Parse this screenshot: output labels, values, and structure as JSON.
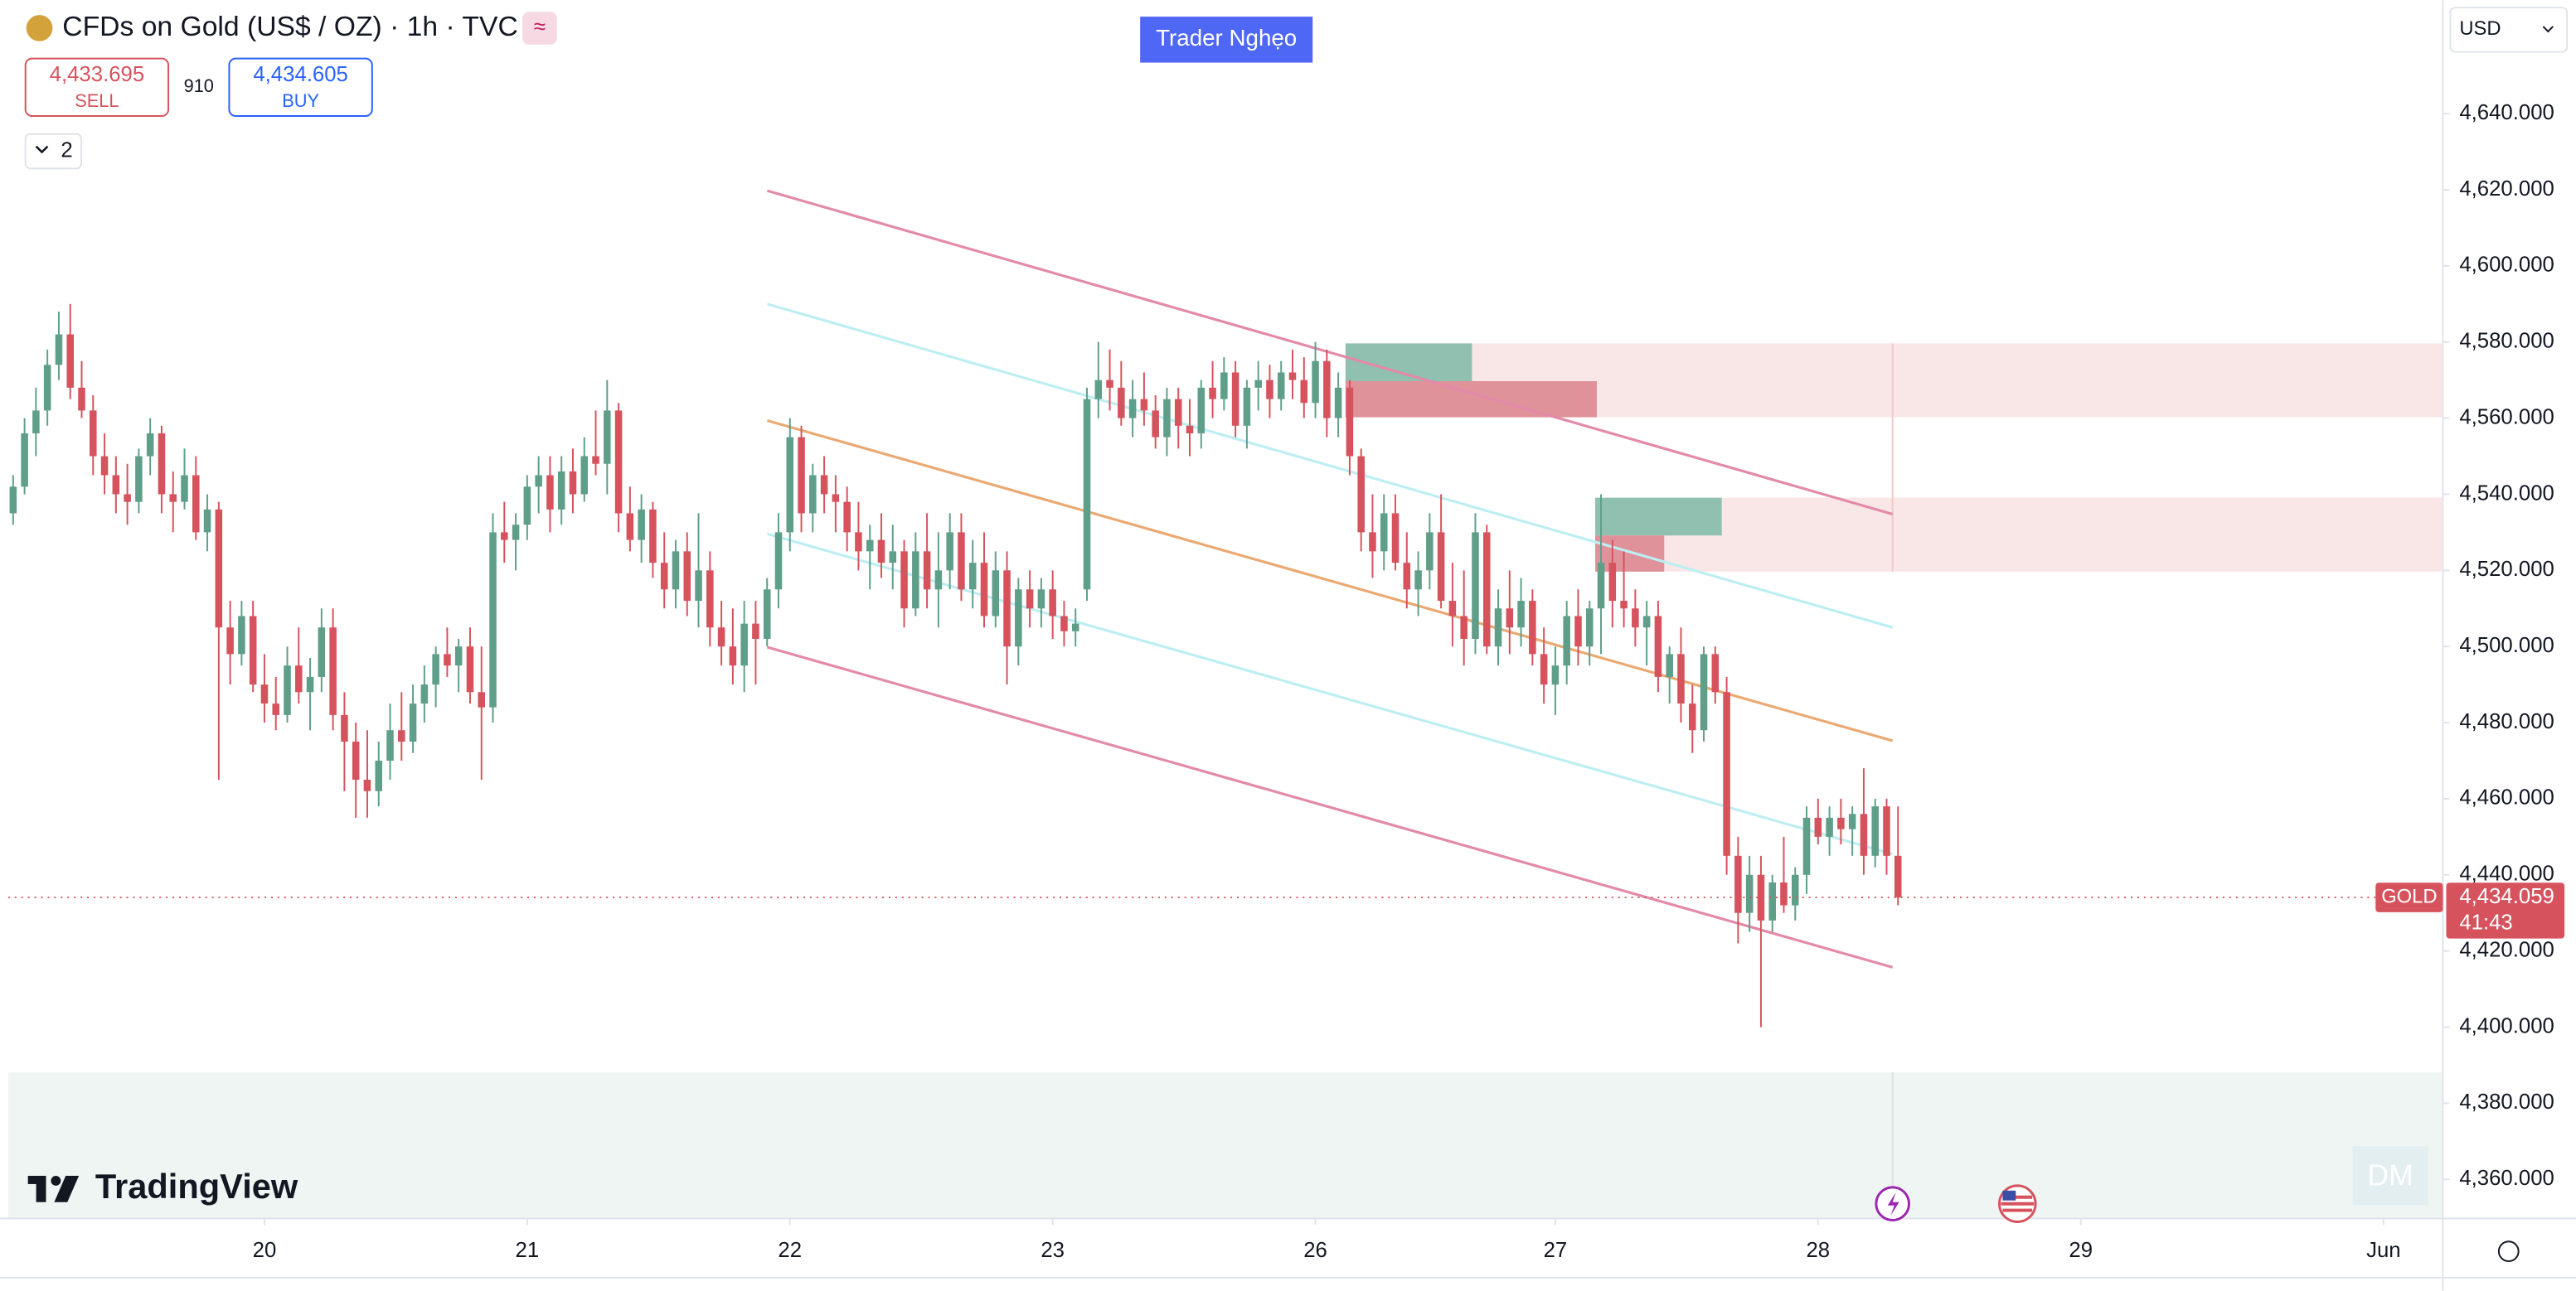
{
  "chart_data": {
    "type": "candlestick",
    "title": "CFDs on Gold (US$ / OZ) · 1h · TVC",
    "symbol": "GOLD",
    "currency": "USD",
    "last_price": {
      "value": 4434.059,
      "label": "4,434.059"
    },
    "countdown": "41:43",
    "up_color": "#5f9f8a",
    "down_color": "#d6535e",
    "grid": false,
    "ylim": [
      4349.7,
      4669.8
    ],
    "yticks": [
      {
        "value": 4360,
        "label": "4,360.000"
      },
      {
        "value": 4380,
        "label": "4,380.000"
      },
      {
        "value": 4400,
        "label": "4,400.000"
      },
      {
        "value": 4420,
        "label": "4,420.000"
      },
      {
        "value": 4440,
        "label": "4,440.000"
      },
      {
        "value": 4460,
        "label": "4,460.000"
      },
      {
        "value": 4480,
        "label": "4,480.000"
      },
      {
        "value": 4500,
        "label": "4,500.000"
      },
      {
        "value": 4520,
        "label": "4,520.000"
      },
      {
        "value": 4540,
        "label": "4,540.000"
      },
      {
        "value": 4560,
        "label": "4,560.000"
      },
      {
        "value": 4580,
        "label": "4,580.000"
      },
      {
        "value": 4600,
        "label": "4,600.000"
      },
      {
        "value": 4620,
        "label": "4,620.000"
      },
      {
        "value": 4640,
        "label": "4,640.000"
      }
    ],
    "xlim": [
      -0.43,
      212.7
    ],
    "xticks": [
      {
        "value": 22,
        "label": "20"
      },
      {
        "value": 45,
        "label": "21"
      },
      {
        "value": 68,
        "label": "22"
      },
      {
        "value": 91,
        "label": "23"
      },
      {
        "value": 114,
        "label": "26"
      },
      {
        "value": 135,
        "label": "27"
      },
      {
        "value": 158,
        "label": "28"
      },
      {
        "value": 181,
        "label": "29"
      },
      {
        "value": 207.5,
        "label": "Jun"
      }
    ],
    "candles": [
      [
        4535,
        4545,
        4532,
        4542
      ],
      [
        4542,
        4560,
        4540,
        4556
      ],
      [
        4556,
        4568,
        4550,
        4562
      ],
      [
        4562,
        4578,
        4558,
        4574
      ],
      [
        4574,
        4588,
        4570,
        4582
      ],
      [
        4582,
        4590,
        4565,
        4568
      ],
      [
        4568,
        4575,
        4560,
        4562
      ],
      [
        4562,
        4566,
        4545,
        4550
      ],
      [
        4550,
        4556,
        4540,
        4545
      ],
      [
        4545,
        4550,
        4535,
        4540
      ],
      [
        4540,
        4548,
        4532,
        4538
      ],
      [
        4538,
        4552,
        4535,
        4550
      ],
      [
        4550,
        4560,
        4545,
        4556
      ],
      [
        4556,
        4558,
        4535,
        4540
      ],
      [
        4540,
        4546,
        4530,
        4538
      ],
      [
        4538,
        4552,
        4536,
        4545
      ],
      [
        4545,
        4550,
        4528,
        4530
      ],
      [
        4530,
        4540,
        4525,
        4536
      ],
      [
        4536,
        4538,
        4465,
        4505
      ],
      [
        4505,
        4512,
        4490,
        4498
      ],
      [
        4498,
        4512,
        4495,
        4508
      ],
      [
        4508,
        4512,
        4488,
        4490
      ],
      [
        4490,
        4498,
        4480,
        4485
      ],
      [
        4485,
        4492,
        4478,
        4482
      ],
      [
        4482,
        4500,
        4480,
        4495
      ],
      [
        4495,
        4505,
        4485,
        4488
      ],
      [
        4488,
        4497,
        4478,
        4492
      ],
      [
        4492,
        4510,
        4488,
        4505
      ],
      [
        4505,
        4510,
        4478,
        4482
      ],
      [
        4482,
        4488,
        4462,
        4475
      ],
      [
        4475,
        4480,
        4455,
        4465
      ],
      [
        4465,
        4478,
        4455,
        4462
      ],
      [
        4462,
        4475,
        4458,
        4470
      ],
      [
        4470,
        4485,
        4465,
        4478
      ],
      [
        4478,
        4488,
        4470,
        4475
      ],
      [
        4475,
        4490,
        4472,
        4485
      ],
      [
        4485,
        4495,
        4480,
        4490
      ],
      [
        4490,
        4500,
        4484,
        4498
      ],
      [
        4498,
        4505,
        4492,
        4495
      ],
      [
        4495,
        4502,
        4488,
        4500
      ],
      [
        4500,
        4505,
        4485,
        4488
      ],
      [
        4488,
        4500,
        4465,
        4484
      ],
      [
        4484,
        4535,
        4480,
        4530
      ],
      [
        4530,
        4538,
        4522,
        4528
      ],
      [
        4528,
        4535,
        4520,
        4532
      ],
      [
        4532,
        4545,
        4528,
        4542
      ],
      [
        4542,
        4550,
        4535,
        4545
      ],
      [
        4545,
        4550,
        4530,
        4536
      ],
      [
        4536,
        4550,
        4532,
        4546
      ],
      [
        4546,
        4552,
        4535,
        4540
      ],
      [
        4540,
        4555,
        4538,
        4550
      ],
      [
        4550,
        4562,
        4545,
        4548
      ],
      [
        4548,
        4570,
        4540,
        4562
      ],
      [
        4562,
        4564,
        4530,
        4535
      ],
      [
        4535,
        4542,
        4525,
        4528
      ],
      [
        4528,
        4540,
        4522,
        4536
      ],
      [
        4536,
        4538,
        4518,
        4522
      ],
      [
        4522,
        4530,
        4510,
        4515
      ],
      [
        4515,
        4528,
        4510,
        4525
      ],
      [
        4525,
        4530,
        4508,
        4512
      ],
      [
        4512,
        4535,
        4505,
        4520
      ],
      [
        4520,
        4525,
        4500,
        4505
      ],
      [
        4505,
        4512,
        4495,
        4500
      ],
      [
        4500,
        4510,
        4490,
        4495
      ],
      [
        4495,
        4512,
        4488,
        4506
      ],
      [
        4506,
        4512,
        4490,
        4502
      ],
      [
        4502,
        4518,
        4500,
        4515
      ],
      [
        4515,
        4535,
        4510,
        4530
      ],
      [
        4530,
        4560,
        4525,
        4555
      ],
      [
        4555,
        4558,
        4530,
        4535
      ],
      [
        4535,
        4548,
        4530,
        4545
      ],
      [
        4545,
        4550,
        4535,
        4540
      ],
      [
        4540,
        4545,
        4530,
        4538
      ],
      [
        4538,
        4542,
        4525,
        4530
      ],
      [
        4530,
        4538,
        4520,
        4525
      ],
      [
        4525,
        4532,
        4515,
        4528
      ],
      [
        4528,
        4535,
        4518,
        4522
      ],
      [
        4522,
        4532,
        4515,
        4525
      ],
      [
        4525,
        4528,
        4505,
        4510
      ],
      [
        4510,
        4530,
        4508,
        4525
      ],
      [
        4525,
        4535,
        4510,
        4515
      ],
      [
        4515,
        4530,
        4505,
        4520
      ],
      [
        4520,
        4535,
        4515,
        4530
      ],
      [
        4530,
        4535,
        4512,
        4515
      ],
      [
        4515,
        4528,
        4510,
        4522
      ],
      [
        4522,
        4530,
        4505,
        4508
      ],
      [
        4508,
        4525,
        4505,
        4520
      ],
      [
        4520,
        4525,
        4490,
        4500
      ],
      [
        4500,
        4518,
        4495,
        4515
      ],
      [
        4515,
        4520,
        4505,
        4510
      ],
      [
        4510,
        4518,
        4505,
        4515
      ],
      [
        4515,
        4520,
        4502,
        4508
      ],
      [
        4508,
        4512,
        4500,
        4504
      ],
      [
        4504,
        4510,
        4500,
        4506
      ],
      [
        4515,
        4568,
        4512,
        4565
      ],
      [
        4565,
        4580,
        4560,
        4570
      ],
      [
        4570,
        4578,
        4562,
        4568
      ],
      [
        4568,
        4575,
        4558,
        4560
      ],
      [
        4560,
        4570,
        4555,
        4565
      ],
      [
        4565,
        4572,
        4558,
        4562
      ],
      [
        4562,
        4566,
        4552,
        4555
      ],
      [
        4555,
        4568,
        4550,
        4565
      ],
      [
        4565,
        4568,
        4552,
        4558
      ],
      [
        4558,
        4565,
        4550,
        4556
      ],
      [
        4556,
        4570,
        4552,
        4568
      ],
      [
        4568,
        4575,
        4560,
        4565
      ],
      [
        4565,
        4576,
        4562,
        4572
      ],
      [
        4572,
        4575,
        4555,
        4558
      ],
      [
        4558,
        4570,
        4552,
        4568
      ],
      [
        4568,
        4575,
        4562,
        4570
      ],
      [
        4570,
        4574,
        4560,
        4565
      ],
      [
        4565,
        4575,
        4562,
        4572
      ],
      [
        4572,
        4578,
        4565,
        4570
      ],
      [
        4570,
        4576,
        4560,
        4564
      ],
      [
        4564,
        4580,
        4560,
        4575
      ],
      [
        4575,
        4578,
        4555,
        4560
      ],
      [
        4560,
        4572,
        4555,
        4568
      ],
      [
        4568,
        4570,
        4545,
        4550
      ],
      [
        4550,
        4552,
        4525,
        4530
      ],
      [
        4530,
        4540,
        4518,
        4525
      ],
      [
        4525,
        4540,
        4520,
        4535
      ],
      [
        4535,
        4540,
        4520,
        4522
      ],
      [
        4522,
        4530,
        4510,
        4515
      ],
      [
        4515,
        4525,
        4508,
        4520
      ],
      [
        4520,
        4535,
        4515,
        4530
      ],
      [
        4530,
        4540,
        4510,
        4512
      ],
      [
        4512,
        4522,
        4500,
        4508
      ],
      [
        4508,
        4520,
        4495,
        4502
      ],
      [
        4502,
        4535,
        4498,
        4530
      ],
      [
        4530,
        4532,
        4498,
        4500
      ],
      [
        4500,
        4515,
        4495,
        4510
      ],
      [
        4510,
        4520,
        4498,
        4505
      ],
      [
        4505,
        4518,
        4500,
        4512
      ],
      [
        4512,
        4515,
        4495,
        4498
      ],
      [
        4498,
        4505,
        4485,
        4490
      ],
      [
        4490,
        4500,
        4482,
        4495
      ],
      [
        4495,
        4512,
        4490,
        4508
      ],
      [
        4508,
        4515,
        4495,
        4500
      ],
      [
        4500,
        4512,
        4495,
        4510
      ],
      [
        4510,
        4540,
        4498,
        4522
      ],
      [
        4522,
        4528,
        4505,
        4512
      ],
      [
        4512,
        4525,
        4505,
        4510
      ],
      [
        4510,
        4515,
        4500,
        4505
      ],
      [
        4505,
        4512,
        4495,
        4508
      ],
      [
        4508,
        4512,
        4488,
        4492
      ],
      [
        4492,
        4500,
        4485,
        4498
      ],
      [
        4498,
        4505,
        4480,
        4485
      ],
      [
        4485,
        4490,
        4472,
        4478
      ],
      [
        4478,
        4500,
        4475,
        4498
      ],
      [
        4498,
        4500,
        4485,
        4488
      ],
      [
        4488,
        4492,
        4440,
        4445
      ],
      [
        4445,
        4450,
        4422,
        4430
      ],
      [
        4430,
        4445,
        4425,
        4440
      ],
      [
        4440,
        4445,
        4400,
        4428
      ],
      [
        4428,
        4440,
        4425,
        4438
      ],
      [
        4438,
        4450,
        4430,
        4432
      ],
      [
        4432,
        4442,
        4428,
        4440
      ],
      [
        4440,
        4458,
        4435,
        4455
      ],
      [
        4455,
        4460,
        4448,
        4450
      ],
      [
        4450,
        4458,
        4445,
        4455
      ],
      [
        4455,
        4460,
        4448,
        4452
      ],
      [
        4452,
        4458,
        4445,
        4456
      ],
      [
        4456,
        4468,
        4440,
        4445
      ],
      [
        4445,
        4460,
        4442,
        4458
      ],
      [
        4458,
        4460,
        4440,
        4445
      ],
      [
        4445,
        4458,
        4432,
        4434.059
      ]
    ]
  },
  "ui": {
    "sell_price": "4,433.695",
    "sell_label": "SELL",
    "spread": "910",
    "buy_price": "4,434.605",
    "buy_label": "BUY",
    "indicators": "2",
    "watermark": "Trader Nghẹo",
    "brand": "TradingView",
    "corner": "DM"
  }
}
